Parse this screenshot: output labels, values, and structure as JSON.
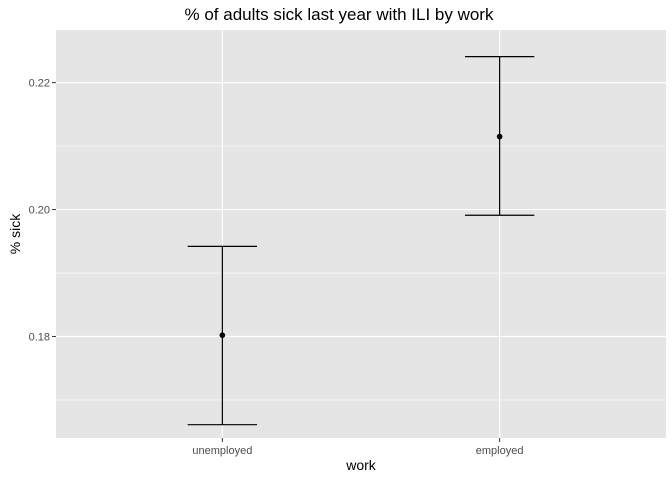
{
  "chart_data": {
    "type": "scatter",
    "title": "% of adults sick last year with ILI by work",
    "xlabel": "work",
    "ylabel": "% sick",
    "categories": [
      "unemployed",
      "employed"
    ],
    "points": [
      {
        "x": "unemployed",
        "y": 0.1802,
        "ymin": 0.1661,
        "ymax": 0.1942
      },
      {
        "x": "employed",
        "y": 0.2115,
        "ymin": 0.1991,
        "ymax": 0.2241
      }
    ],
    "yticks": [
      "0.18",
      "0.20",
      "0.22"
    ],
    "ylim": [
      0.164,
      0.2283
    ],
    "grid": true,
    "colors": {
      "panel": "#e5e5e5",
      "grid": "#ffffff",
      "mark": "#000000",
      "tick_text": "#4d4d4d"
    }
  }
}
